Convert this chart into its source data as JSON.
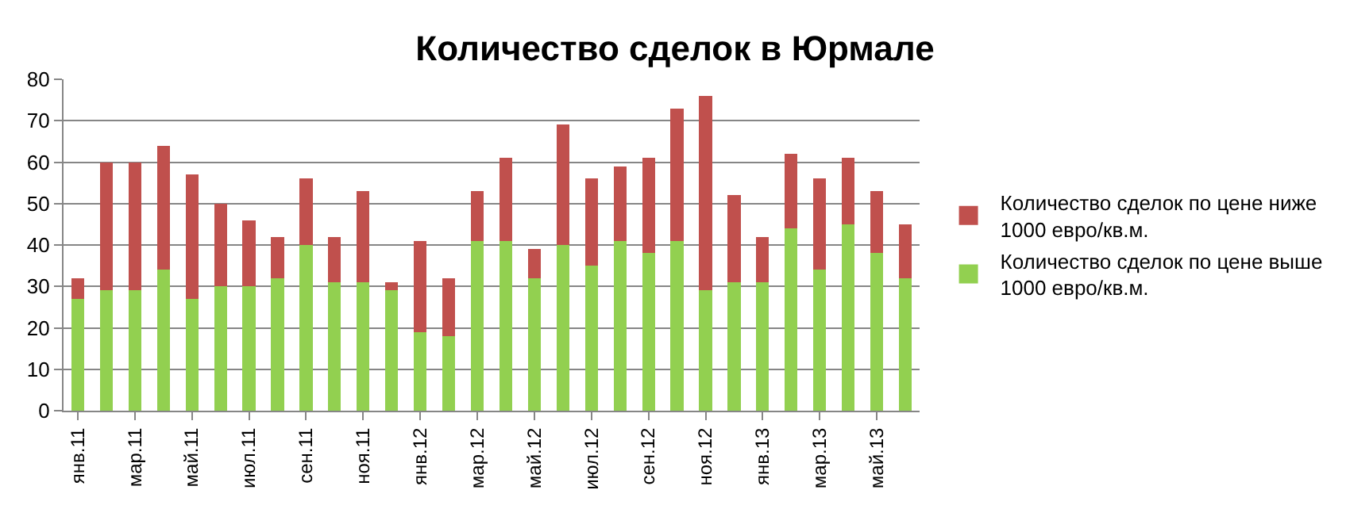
{
  "chart_data": {
    "type": "bar",
    "title": "Количество сделок в Юрмале",
    "stacked": true,
    "categories": [
      "янв.11",
      null,
      "мар.11",
      null,
      "май.11",
      null,
      "июл.11",
      null,
      "сен.11",
      null,
      "ноя.11",
      null,
      "янв.12",
      null,
      "мар.12",
      null,
      "май.12",
      null,
      "июл.12",
      null,
      "сен.12",
      null,
      "ноя.12",
      null,
      "янв.13",
      null,
      "мар.13",
      null,
      "май.13",
      null
    ],
    "series": [
      {
        "name": "Количество сделок по цене выше 1000 евро/кв.м.",
        "color": "#92d050",
        "values": [
          27,
          29,
          29,
          34,
          27,
          30,
          30,
          32,
          40,
          31,
          31,
          29,
          19,
          18,
          41,
          41,
          32,
          40,
          35,
          41,
          38,
          41,
          29,
          31,
          31,
          44,
          34,
          45,
          38,
          32
        ]
      },
      {
        "name": "Количество сделок по цене ниже 1000 евро/кв.м.",
        "color": "#c0504d",
        "values": [
          5,
          31,
          31,
          30,
          30,
          20,
          16,
          10,
          16,
          11,
          22,
          2,
          22,
          14,
          12,
          20,
          7,
          29,
          21,
          18,
          23,
          32,
          47,
          21,
          11,
          18,
          22,
          16,
          15,
          13
        ]
      }
    ],
    "ylim": [
      0,
      80
    ],
    "yticks": [
      0,
      10,
      20,
      30,
      40,
      50,
      60,
      70,
      80
    ],
    "grid": "y",
    "legend": "right"
  }
}
